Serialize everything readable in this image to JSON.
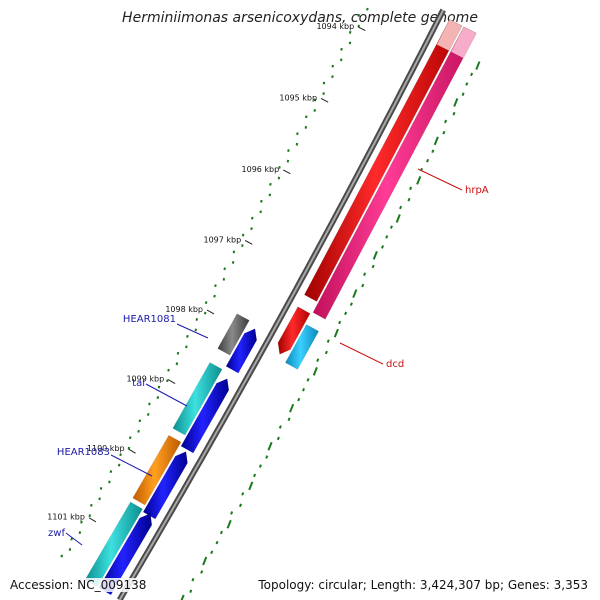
{
  "title": "Herminiimonas arsenicoxydans, complete genome",
  "footer": {
    "accession": "Accession: NC_009138",
    "topology": "Topology: circular; Length: 3,424,307 bp; Genes: 3,353"
  },
  "kbp_labels": [
    "1094 kbp",
    "1095 kbp",
    "1096 kbp",
    "1097 kbp",
    "1098 kbp",
    "1099 kbp",
    "1100 kbp",
    "1101 kbp"
  ],
  "genes": [
    {
      "name": "HEAR1081",
      "color": "#1a1aa8"
    },
    {
      "name": "tal",
      "color": "#1a1aa8"
    },
    {
      "name": "HEAR1083",
      "color": "#1a1aa8"
    },
    {
      "name": "zwf",
      "color": "#1a1aa8"
    },
    {
      "name": "hrpA",
      "color": "#cc1010"
    },
    {
      "name": "dcd",
      "color": "#cc1010"
    }
  ],
  "colors": {
    "backbone": "#808080",
    "cds_forward": "#1010e0",
    "feature_red": "#ee1111",
    "feature_pink": "#ff2288",
    "feature_teal": "#22cccc",
    "feature_orange": "#ff8800",
    "feature_cyan": "#22bbee",
    "feature_gray": "#666666",
    "tick_green": "#1a7a1a"
  }
}
